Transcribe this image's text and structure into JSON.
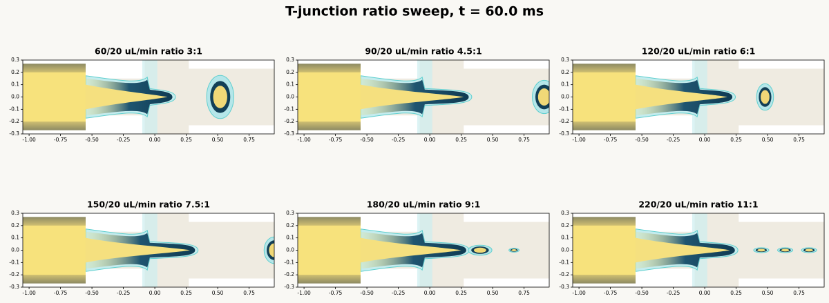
{
  "title": "T-junction ratio sweep, t = 60.0 ms",
  "chart_data": [
    {
      "type": "image",
      "title": "60/20 uL/min  ratio 3:1",
      "xlim": [
        -1.05,
        0.95
      ],
      "ylim": [
        -0.3,
        0.3
      ],
      "xticks": [
        {
          "value": -1,
          "label": "-1.00"
        },
        -0.75,
        {
          "value": -0.5,
          "label": "-0.50"
        },
        -0.25,
        {
          "value": 0,
          "label": "0.00"
        },
        0.25,
        {
          "value": 0.5,
          "label": "0.50"
        },
        0.75
      ],
      "yticks": [
        0.3,
        0.2,
        0.1,
        {
          "value": 0,
          "label": "0.0"
        },
        -0.1,
        -0.2,
        -0.3
      ]
    },
    {
      "type": "image",
      "title": "90/20 uL/min  ratio 4.5:1",
      "xlim": [
        -1.05,
        0.95
      ],
      "ylim": [
        -0.3,
        0.3
      ],
      "xticks": [
        {
          "value": -1,
          "label": "-1.00"
        },
        -0.75,
        {
          "value": -0.5,
          "label": "-0.50"
        },
        -0.25,
        {
          "value": 0,
          "label": "0.00"
        },
        0.25,
        {
          "value": 0.5,
          "label": "0.50"
        },
        0.75
      ],
      "yticks": [
        0.3,
        0.2,
        0.1,
        {
          "value": 0,
          "label": "0.0"
        },
        -0.1,
        -0.2,
        -0.3
      ]
    },
    {
      "type": "image",
      "title": "120/20 uL/min  ratio 6:1",
      "xlim": [
        -1.05,
        0.95
      ],
      "ylim": [
        -0.3,
        0.3
      ],
      "xticks": [
        {
          "value": -1,
          "label": "-1.00"
        },
        -0.75,
        {
          "value": -0.5,
          "label": "-0.50"
        },
        -0.25,
        {
          "value": 0,
          "label": "0.00"
        },
        0.25,
        {
          "value": 0.5,
          "label": "0.50"
        },
        0.75
      ],
      "yticks": [
        0.3,
        0.2,
        0.1,
        {
          "value": 0,
          "label": "0.0"
        },
        -0.1,
        -0.2,
        -0.3
      ]
    },
    {
      "type": "image",
      "title": "150/20 uL/min  ratio 7.5:1",
      "xlim": [
        -1.05,
        0.95
      ],
      "ylim": [
        -0.3,
        0.3
      ],
      "xticks": [
        {
          "value": -1,
          "label": "-1.00"
        },
        -0.75,
        {
          "value": -0.5,
          "label": "-0.50"
        },
        -0.25,
        {
          "value": 0,
          "label": "0.00"
        },
        0.25,
        {
          "value": 0.5,
          "label": "0.50"
        },
        0.75
      ],
      "yticks": [
        0.3,
        0.2,
        0.1,
        {
          "value": 0,
          "label": "0.0"
        },
        -0.1,
        -0.2,
        -0.3
      ]
    },
    {
      "type": "image",
      "title": "180/20 uL/min  ratio 9:1",
      "xlim": [
        -1.05,
        0.95
      ],
      "ylim": [
        -0.3,
        0.3
      ],
      "xticks": [
        {
          "value": -1,
          "label": "-1.00"
        },
        -0.75,
        {
          "value": -0.5,
          "label": "-0.50"
        },
        -0.25,
        {
          "value": 0,
          "label": "0.00"
        },
        0.25,
        {
          "value": 0.5,
          "label": "0.50"
        },
        0.75
      ],
      "yticks": [
        0.3,
        0.2,
        0.1,
        {
          "value": 0,
          "label": "0.0"
        },
        -0.1,
        -0.2,
        -0.3
      ]
    },
    {
      "type": "image",
      "title": "220/20 uL/min  ratio 11:1",
      "xlim": [
        -1.05,
        0.95
      ],
      "ylim": [
        -0.3,
        0.3
      ],
      "xticks": [
        {
          "value": -1,
          "label": "-1.00"
        },
        -0.75,
        {
          "value": -0.5,
          "label": "-0.50"
        },
        -0.25,
        {
          "value": 0,
          "label": "0.00"
        },
        0.25,
        {
          "value": 0.5,
          "label": "0.50"
        },
        0.75
      ],
      "yticks": [
        0.3,
        0.2,
        0.1,
        {
          "value": 0,
          "label": "0.0"
        },
        -0.1,
        -0.2,
        -0.3
      ]
    }
  ]
}
